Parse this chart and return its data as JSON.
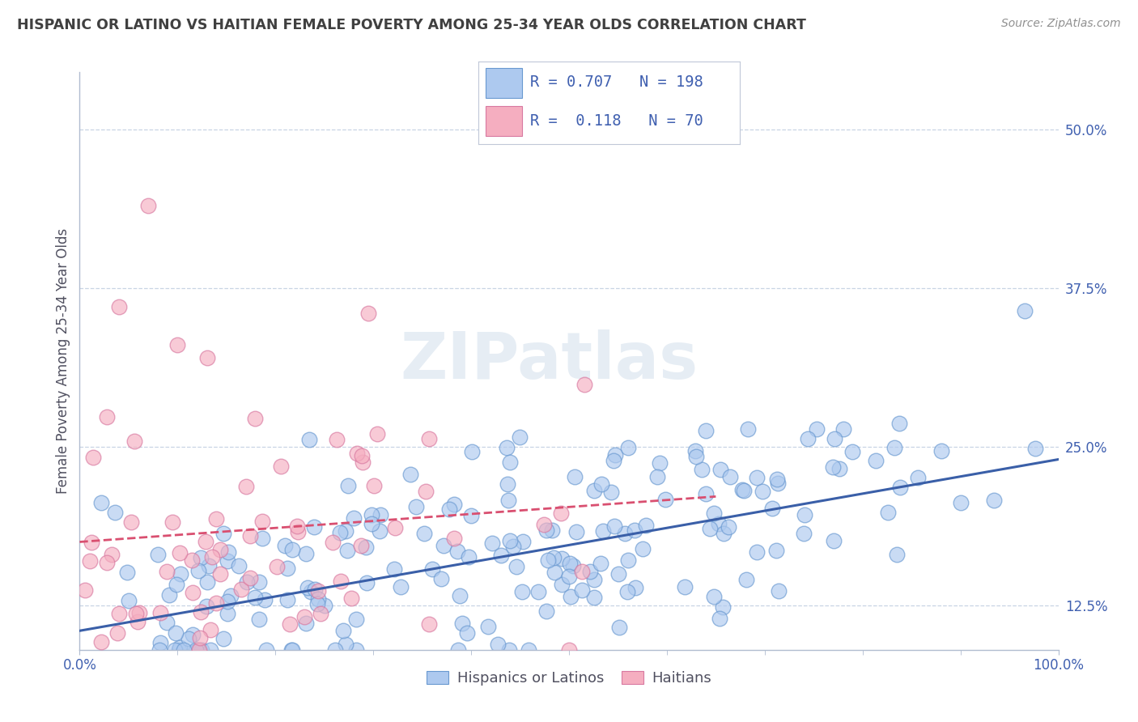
{
  "title": "HISPANIC OR LATINO VS HAITIAN FEMALE POVERTY AMONG 25-34 YEAR OLDS CORRELATION CHART",
  "source": "Source: ZipAtlas.com",
  "ylabel": "Female Poverty Among 25-34 Year Olds",
  "xlim": [
    0,
    1.0
  ],
  "ylim": [
    0.09,
    0.545
  ],
  "xtick_positions": [
    0.0,
    1.0
  ],
  "xtick_labels": [
    "0.0%",
    "100.0%"
  ],
  "yticks": [
    0.125,
    0.25,
    0.375,
    0.5
  ],
  "ytick_labels": [
    "12.5%",
    "25.0%",
    "37.5%",
    "50.0%"
  ],
  "blue_R": 0.707,
  "blue_N": 198,
  "pink_R": 0.118,
  "pink_N": 70,
  "blue_color": "#adc9ef",
  "pink_color": "#f5aec0",
  "blue_line_color": "#3a5fa8",
  "pink_line_color": "#d94f70",
  "blue_scatter_edge": "#6898d0",
  "pink_scatter_edge": "#d878a0",
  "watermark": "ZIPatlas",
  "watermark_color": "#c8d8e8",
  "legend_label_blue": "Hispanics or Latinos",
  "legend_label_pink": "Haitians",
  "blue_slope": 0.135,
  "blue_intercept": 0.105,
  "pink_slope": 0.055,
  "pink_intercept": 0.175,
  "background_color": "#ffffff",
  "grid_color": "#c8d4e4",
  "title_color": "#404040",
  "axis_label_color": "#505060",
  "tick_label_color": "#4060b0",
  "source_color": "#909090"
}
